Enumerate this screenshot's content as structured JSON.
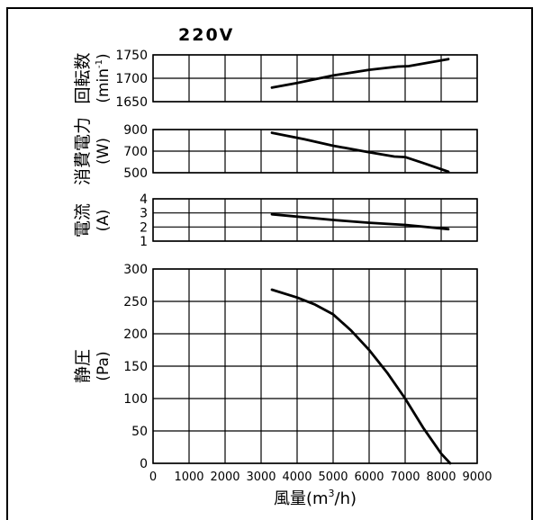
{
  "voltage_label": "220V",
  "chart_data": [
    {
      "type": "line",
      "title": "",
      "ylabel": "回転数",
      "yunit": "(min-1)",
      "yunit_base": "(min",
      "yunit_sup": "-1",
      "yunit_end": ")",
      "ylim": [
        1650,
        1750
      ],
      "yticks": [
        1650,
        1700,
        1750
      ],
      "xlim": [
        0,
        9000
      ],
      "x": [
        3300,
        4000,
        5000,
        6000,
        6800,
        7100,
        8200
      ],
      "y": [
        1680,
        1690,
        1706,
        1718,
        1725,
        1726,
        1741
      ]
    },
    {
      "type": "line",
      "title": "",
      "ylabel": "消費電力",
      "yunit": "(W)",
      "ylim": [
        500,
        900
      ],
      "yticks": [
        500,
        700,
        900
      ],
      "xlim": [
        0,
        9000
      ],
      "x": [
        3300,
        4200,
        5000,
        6000,
        6700,
        7000,
        7500,
        8200
      ],
      "y": [
        870,
        810,
        750,
        690,
        650,
        645,
        590,
        510
      ]
    },
    {
      "type": "line",
      "title": "",
      "ylabel": "電流",
      "yunit": "(A)",
      "ylim": [
        1,
        4
      ],
      "yticks": [
        1,
        2,
        3,
        4
      ],
      "xlim": [
        0,
        9000
      ],
      "x": [
        3300,
        5000,
        6000,
        7000,
        8200
      ],
      "y": [
        2.9,
        2.5,
        2.3,
        2.15,
        1.85
      ]
    },
    {
      "type": "line",
      "title": "",
      "ylabel": "静圧",
      "yunit": "(Pa)",
      "ylim": [
        0,
        300
      ],
      "yticks": [
        0,
        50,
        100,
        150,
        200,
        250,
        300
      ],
      "xlim": [
        0,
        9000
      ],
      "xticks": [
        0,
        1000,
        2000,
        3000,
        4000,
        5000,
        6000,
        7000,
        8000,
        9000
      ],
      "xlabel": "風量(m3/h)",
      "xlabel_base": "風量(m",
      "xlabel_sup": "3",
      "xlabel_end": "/h)",
      "x": [
        3300,
        4000,
        4500,
        5000,
        5500,
        6000,
        6500,
        7000,
        7500,
        8000,
        8250
      ],
      "y": [
        268,
        256,
        245,
        230,
        205,
        175,
        140,
        100,
        55,
        15,
        0
      ]
    }
  ]
}
